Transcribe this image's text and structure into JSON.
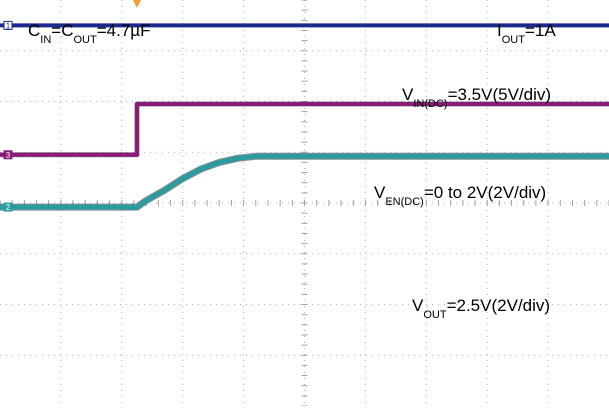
{
  "chart_data": {
    "type": "line",
    "title": "",
    "xlabel": "",
    "ylabel": "",
    "grid": true,
    "grid_divisions": {
      "x": 10,
      "y": 8
    },
    "conditions": {
      "cap_label": {
        "c_in": "C",
        "c_in_sub": "IN",
        "eq1": "=C",
        "c_out_sub": "OUT",
        "val": "=4.7µF"
      },
      "iout_label": {
        "i": "I",
        "sub": "OUT",
        "val": "=1A"
      }
    },
    "series": [
      {
        "name": "VIN",
        "label": {
          "main": "V",
          "sub": "IN(DC)",
          "val": "=3.5V(5V/div)"
        },
        "color": "#1a2a8c",
        "channel_marker": "1",
        "x_div": [
          0,
          10
        ],
        "y_div": [
          0.5,
          0.5
        ]
      },
      {
        "name": "VEN",
        "label": {
          "main": "V",
          "sub": "EN(DC)",
          "val": "=0 to 2V(2V/div)"
        },
        "color": "#8b1a7a",
        "channel_marker": "3",
        "x_div": [
          0,
          2.25,
          2.25,
          10
        ],
        "y_div": [
          3.05,
          3.05,
          2.05,
          2.05
        ]
      },
      {
        "name": "VOUT",
        "label": {
          "main": "V",
          "sub": "OUT",
          "val": "=2.5V(2V/div)"
        },
        "color": "#2a9c9c",
        "channel_marker": "2",
        "x_div": [
          0,
          2.25,
          2.4,
          2.7,
          3.0,
          3.3,
          3.6,
          3.9,
          4.2,
          10
        ],
        "y_div": [
          4.08,
          4.08,
          3.95,
          3.75,
          3.52,
          3.33,
          3.2,
          3.12,
          3.08,
          3.08
        ]
      }
    ]
  }
}
